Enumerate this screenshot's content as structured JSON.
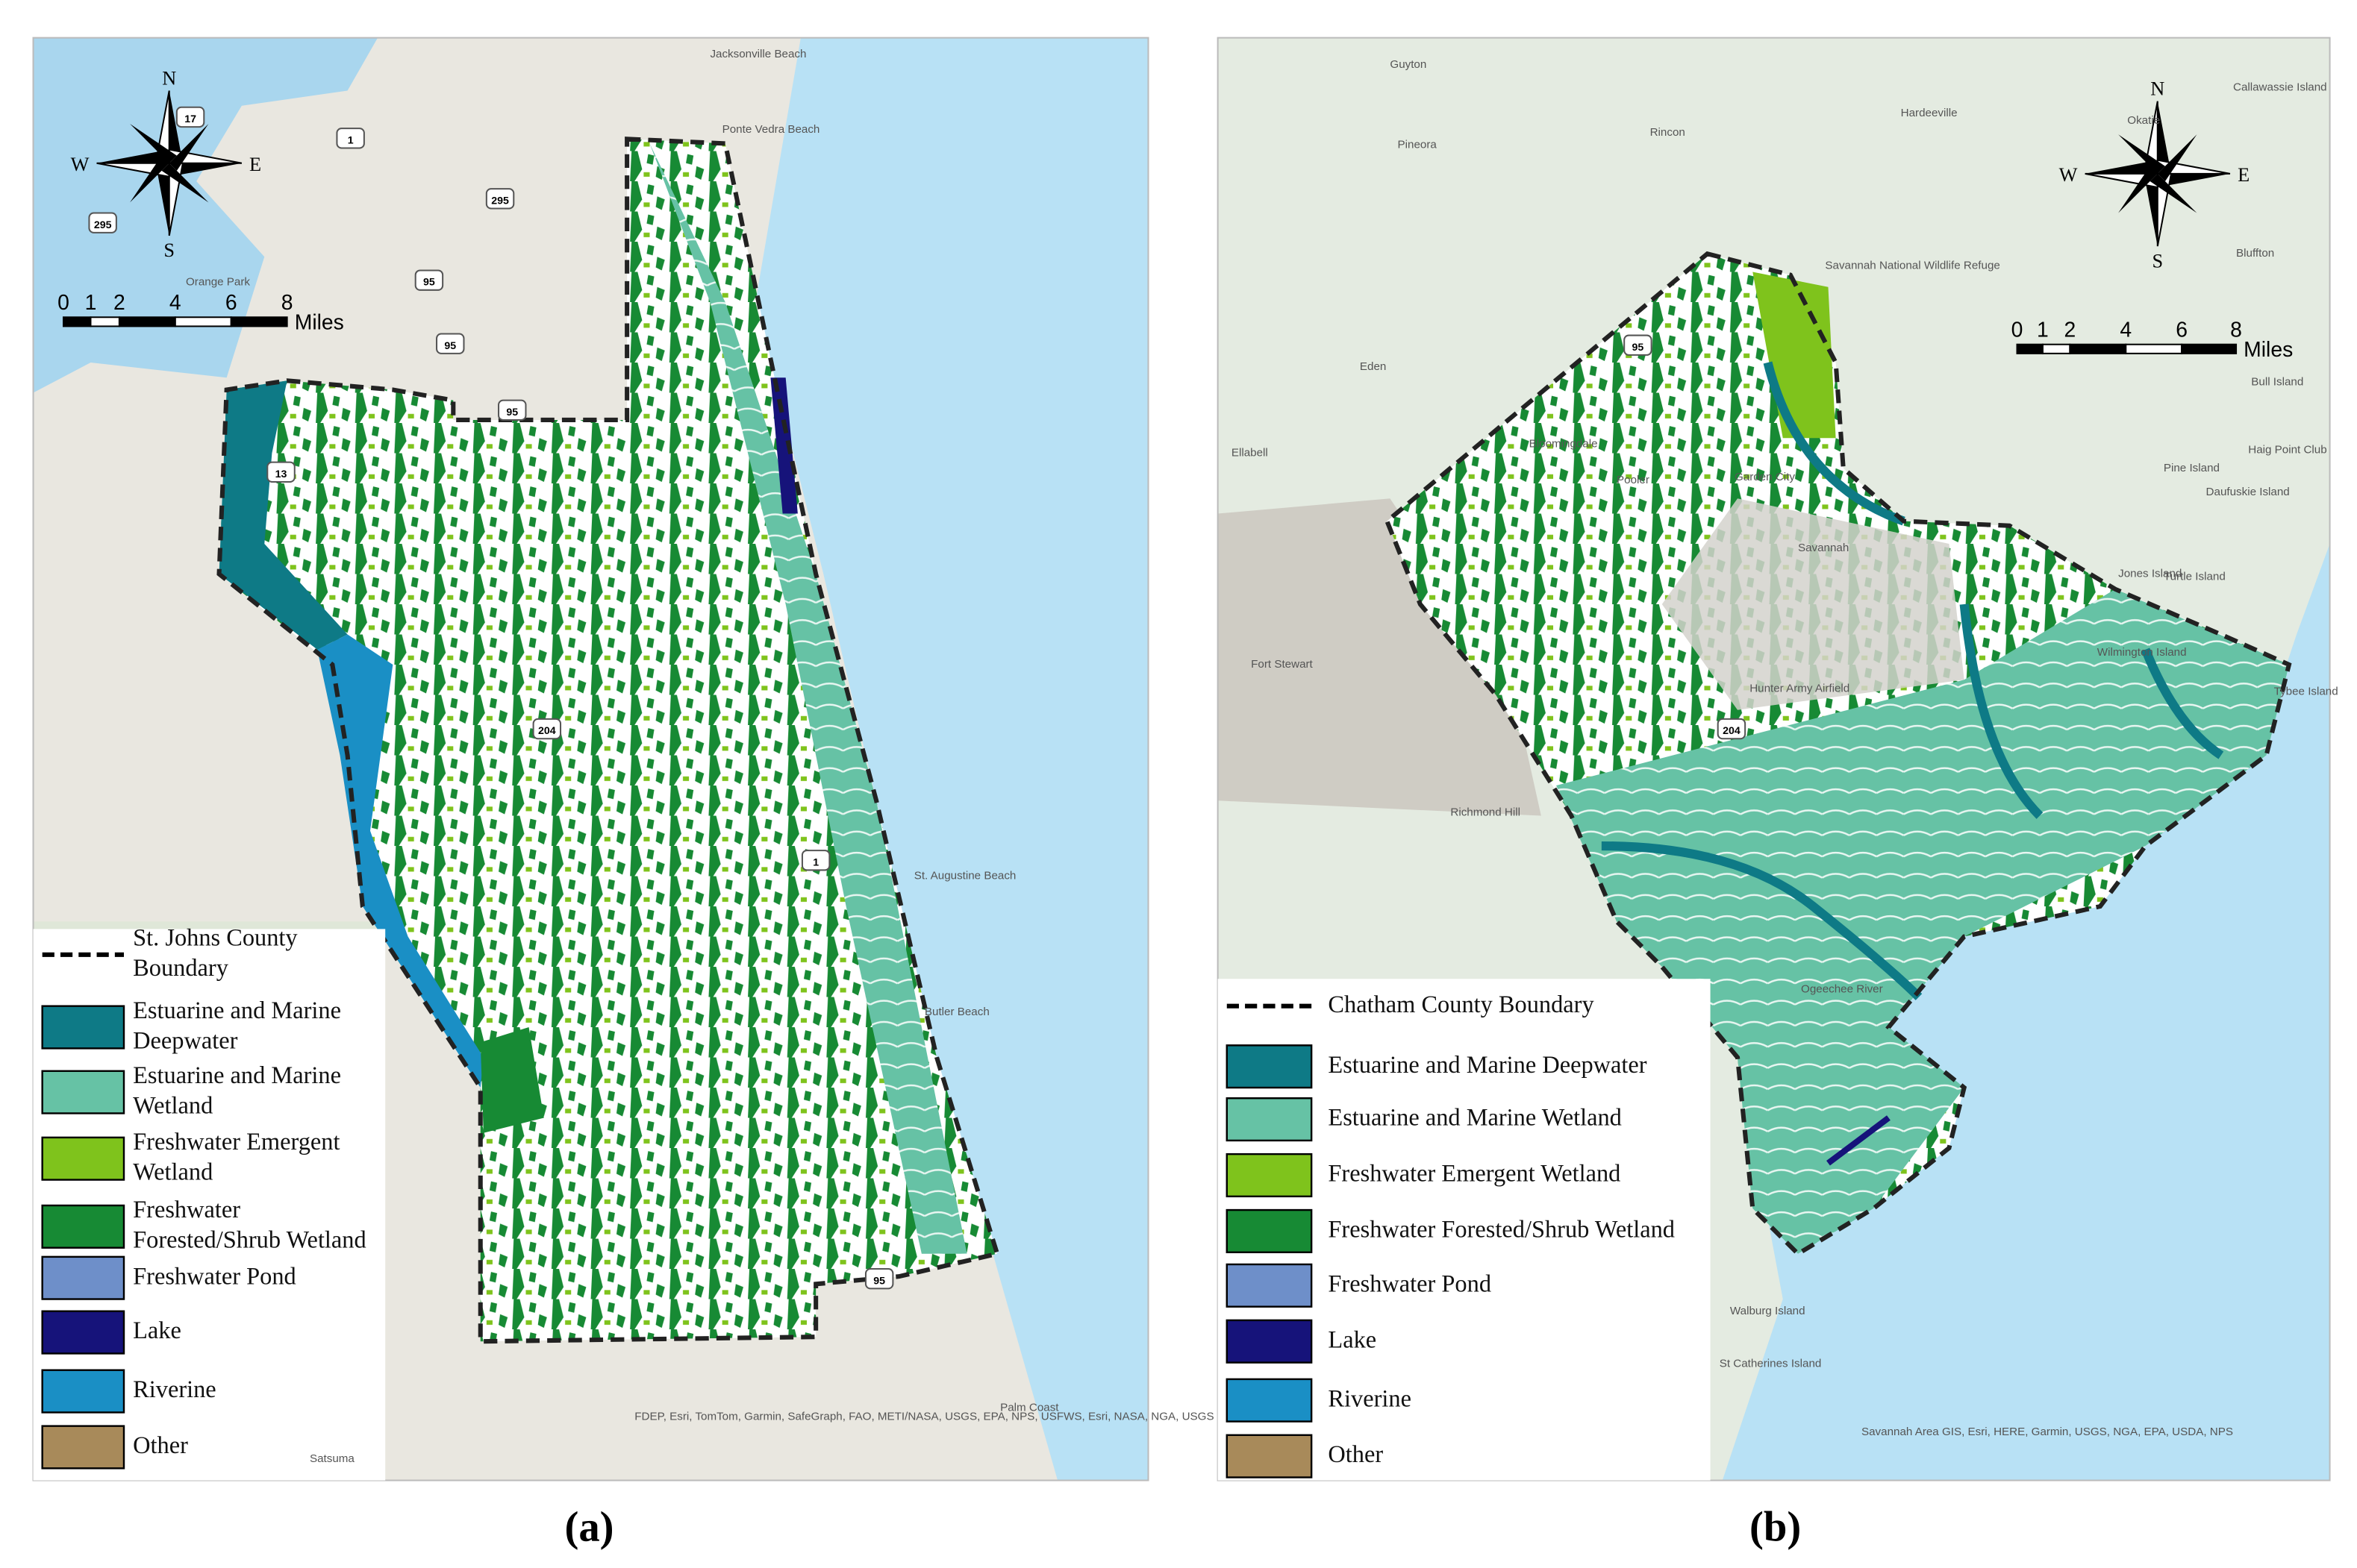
{
  "panels": [
    {
      "caption": "(a)",
      "compass": {
        "n": "N",
        "s": "S",
        "w": "W",
        "e": "E"
      },
      "scale_labels": [
        "0",
        "1",
        "2",
        "4",
        "6",
        "8"
      ],
      "scale_unit": "Miles",
      "legend": [
        {
          "label": "St. Johns County Boundary",
          "kind": "boundary"
        },
        {
          "label": "Estuarine and Marine Deepwater",
          "color": "#0e7a86"
        },
        {
          "label": "Estuarine and Marine Wetland",
          "color": "#66c2a5"
        },
        {
          "label": "Freshwater Emergent Wetland",
          "color": "#7fc31c"
        },
        {
          "label": "Freshwater Forested/Shrub Wetland",
          "color": "#178a34"
        },
        {
          "label": "Freshwater Pond",
          "color": "#6e8fc9"
        },
        {
          "label": "Lake",
          "color": "#16137a"
        },
        {
          "label": "Riverine",
          "color": "#1a8fc5"
        },
        {
          "label": "Other",
          "color": "#a88a5a"
        }
      ],
      "places": [
        "Jacksonville Beach",
        "Ponte Vedra Beach",
        "Orange Park",
        "St. Augustine Beach",
        "Butler Beach",
        "Palm Coast",
        "Satsuma"
      ],
      "shields": [
        "17",
        "1",
        "295",
        "295",
        "95",
        "95",
        "13",
        "204",
        "1",
        "95",
        "95"
      ],
      "attribution": "FDEP, Esri, TomTom, Garmin, SafeGraph, FAO, METI/NASA, USGS, EPA, NPS, USFWS, Esri, NASA, NGA, USGS"
    },
    {
      "caption": "(b)",
      "compass": {
        "n": "N",
        "s": "S",
        "w": "W",
        "e": "E"
      },
      "scale_labels": [
        "0",
        "1",
        "2",
        "4",
        "6",
        "8"
      ],
      "scale_unit": "Miles",
      "legend": [
        {
          "label": "Chatham County Boundary",
          "kind": "boundary"
        },
        {
          "label": "Estuarine and Marine Deepwater",
          "color": "#0e7a86"
        },
        {
          "label": "Estuarine and Marine Wetland",
          "color": "#66c2a5"
        },
        {
          "label": "Freshwater Emergent Wetland",
          "color": "#7fc31c"
        },
        {
          "label": "Freshwater Forested/Shrub Wetland",
          "color": "#178a34"
        },
        {
          "label": "Freshwater Pond",
          "color": "#6e8fc9"
        },
        {
          "label": "Lake",
          "color": "#16137a"
        },
        {
          "label": "Riverine",
          "color": "#1a8fc5"
        },
        {
          "label": "Other",
          "color": "#a88a5a"
        }
      ],
      "places": [
        "Guyton",
        "Pineora",
        "Rincon",
        "Hardeeville",
        "Okatie",
        "Callawassie Island",
        "Bluffton",
        "Eden",
        "Ellabell",
        "Pooler",
        "Bloomingdale",
        "Garden City",
        "Savannah",
        "Savannah National Wildlife Refuge",
        "Fort Stewart",
        "Richmond Hill",
        "Wilmington Island",
        "Tybee Island",
        "Pine Island",
        "Daufuskie Island",
        "Haig Point Club",
        "Jones Island",
        "Turtle Island",
        "Bull Island",
        "St Catherines Island",
        "Walburg Island",
        "Hunter Army Airfield",
        "Ogeechee River"
      ],
      "shields": [
        "95",
        "204"
      ],
      "attribution": "Savannah Area GIS, Esri, HERE, Garmin, USGS, NGA, EPA, USDA, NPS"
    }
  ]
}
